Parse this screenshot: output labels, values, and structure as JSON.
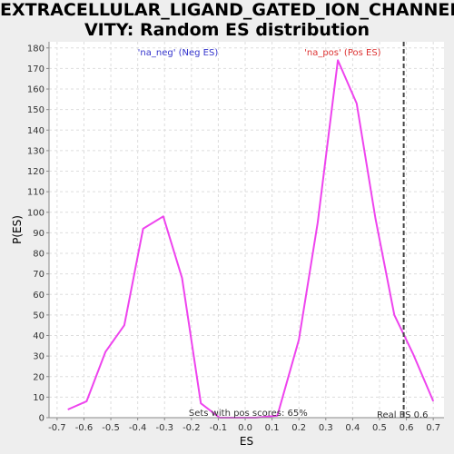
{
  "chart_data": {
    "type": "line",
    "title_line1": "EXTRACELLULAR_LIGAND_GATED_ION_CHANNEL_ACTI",
    "title_line2": "VITY: Random ES distribution",
    "xlabel": "ES",
    "ylabel": "P(ES)",
    "xlim": [
      -0.73,
      0.74
    ],
    "ylim": [
      0,
      183
    ],
    "x_ticks": [
      -0.7,
      -0.6,
      -0.5,
      -0.4,
      -0.3,
      -0.2,
      -0.1,
      0.0,
      0.1,
      0.2,
      0.3,
      0.4,
      0.5,
      0.6,
      0.7
    ],
    "x_tick_labels": [
      "-0.7",
      "-0.6",
      "-0.5",
      "-0.4",
      "-0.3",
      "-0.2",
      "-0.1",
      "0.0",
      "0.1",
      "0.2",
      "0.3",
      "0.4",
      "0.5",
      "0.6",
      "0.7"
    ],
    "y_ticks": [
      0,
      10,
      20,
      30,
      40,
      50,
      60,
      70,
      80,
      90,
      100,
      110,
      120,
      130,
      140,
      150,
      160,
      170,
      180
    ],
    "grid": true,
    "series": [
      {
        "color": "#ee44ee",
        "x": [
          -0.66,
          -0.59,
          -0.52,
          -0.45,
          -0.38,
          -0.305,
          -0.235,
          -0.165,
          -0.095,
          -0.03,
          0.04,
          0.12,
          0.2,
          0.27,
          0.345,
          0.415,
          0.485,
          0.555,
          0.625,
          0.7
        ],
        "y": [
          4,
          8,
          32,
          45,
          92,
          98,
          68,
          7,
          0,
          0,
          0,
          1,
          38,
          95,
          174,
          153,
          97,
          50,
          31,
          8
        ]
      }
    ],
    "real_es": 0.59,
    "real_es_label": "Real ES 0.6",
    "neg_label": "'na_neg' (Neg ES)",
    "pos_label": "'na_pos' (Pos ES)",
    "neg_color": "#3333cc",
    "pos_color": "#dd3333",
    "footer_note": "Sets with pos scores: 65%"
  }
}
